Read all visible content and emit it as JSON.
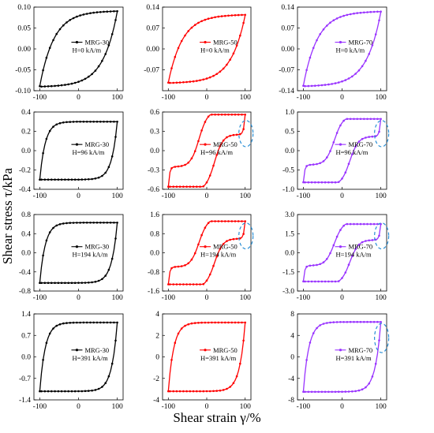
{
  "figure": {
    "ylabel": "Shear stress τ/kPa",
    "xlabel": "Shear strain γ/%"
  },
  "chart_data": [
    {
      "type": "line",
      "row": 0,
      "col": 0,
      "sample": "MRG-30",
      "field": "H=0 kA/m",
      "color": "#000000",
      "x_ticks": [
        -100,
        0,
        100
      ],
      "y_ticks": [
        0.1,
        0.05,
        0.0,
        -0.05,
        -0.1
      ],
      "y_tick_labels": [
        "0.10",
        "0.05",
        "0.00",
        "-0.05",
        "-0.10"
      ],
      "ylim": [
        -0.1,
        0.1
      ],
      "xlim": [
        -115,
        115
      ],
      "series": [
        {
          "name": "MRG-30",
          "tau_max": 0.091,
          "tau_plateau": 0.09,
          "shape": "elliptic",
          "loop": true
        }
      ],
      "annotation": null
    },
    {
      "type": "line",
      "row": 0,
      "col": 1,
      "sample": "MRG-50",
      "field": "H=0 kA/m",
      "color": "#ff0000",
      "x_ticks": [
        -100,
        0,
        100
      ],
      "y_ticks": [
        0.14,
        0.07,
        0.0,
        -0.07
      ],
      "y_tick_labels": [
        "0.14",
        "0.07",
        "0.00",
        "-0.07"
      ],
      "ylim": [
        -0.14,
        0.14
      ],
      "xlim": [
        -115,
        115
      ],
      "series": [
        {
          "name": "MRG-50",
          "tau_max": 0.115,
          "tau_plateau": 0.114,
          "shape": "elliptic",
          "loop": true
        }
      ],
      "annotation": null
    },
    {
      "type": "line",
      "row": 0,
      "col": 2,
      "sample": "MRG-70",
      "field": "H=0 kA/m",
      "color": "#9933ff",
      "x_ticks": [
        -100,
        0,
        100
      ],
      "y_ticks": [
        0.14,
        0.07,
        0.0,
        -0.07,
        -0.14
      ],
      "y_tick_labels": [
        "0.14",
        "0.07",
        "0.00",
        "-0.07",
        "-0.14"
      ],
      "ylim": [
        -0.14,
        0.14
      ],
      "xlim": [
        -115,
        115
      ],
      "series": [
        {
          "name": "MRG-70",
          "tau_max": 0.126,
          "tau_plateau": 0.125,
          "shape": "elliptic",
          "loop": true
        }
      ],
      "annotation": null
    },
    {
      "type": "line",
      "row": 1,
      "col": 0,
      "sample": "MRG-30",
      "field": "H=96 kA/m",
      "color": "#000000",
      "x_ticks": [
        -100,
        0,
        100
      ],
      "y_ticks": [
        0.4,
        0.2,
        0.0,
        -0.2,
        -0.4
      ],
      "y_tick_labels": [
        "0.4",
        "0.2",
        "0.0",
        "-0.2",
        "-0.4"
      ],
      "ylim": [
        -0.4,
        0.4
      ],
      "xlim": [
        -115,
        115
      ],
      "series": [
        {
          "name": "MRG-30",
          "tau_max": 0.3,
          "tau_plateau": 0.31,
          "shape": "plastic",
          "loop": true
        }
      ],
      "annotation": null
    },
    {
      "type": "line",
      "row": 1,
      "col": 1,
      "sample": "MRG-50",
      "field": "H=96 kA/m",
      "color": "#ff0000",
      "x_ticks": [
        -100,
        0,
        100
      ],
      "y_ticks": [
        0.6,
        0.3,
        0.0,
        -0.3,
        -0.6
      ],
      "y_tick_labels": [
        "0.6",
        "0.3",
        "0.0",
        "-0.3",
        "-0.6"
      ],
      "ylim": [
        -0.6,
        0.6
      ],
      "xlim": [
        -115,
        115
      ],
      "series": [
        {
          "name": "MRG-50",
          "tau_max": 0.56,
          "tau_plateau": 0.54,
          "shape": "sshape",
          "loop": true
        }
      ],
      "annotation": "dashed-ellipse"
    },
    {
      "type": "line",
      "row": 1,
      "col": 2,
      "sample": "MRG-70",
      "field": "H=96 kA/m",
      "color": "#9933ff",
      "x_ticks": [
        -100,
        0,
        100
      ],
      "y_ticks": [
        1.0,
        0.5,
        0.0,
        -0.5,
        -1.0
      ],
      "y_tick_labels": [
        "1.0",
        "0.5",
        "0.0",
        "-0.5",
        "-1.0"
      ],
      "ylim": [
        -1.0,
        1.0
      ],
      "xlim": [
        -115,
        115
      ],
      "series": [
        {
          "name": "MRG-70",
          "tau_max": 0.82,
          "tau_plateau": 0.8,
          "shape": "sshape",
          "loop": true
        }
      ],
      "annotation": "dashed-ellipse"
    },
    {
      "type": "line",
      "row": 2,
      "col": 0,
      "sample": "MRG-30",
      "field": "H=194 kA/m",
      "color": "#000000",
      "x_ticks": [
        -100,
        0,
        100
      ],
      "y_ticks": [
        0.8,
        0.4,
        0.0,
        -0.4,
        -0.8
      ],
      "y_tick_labels": [
        "0.8",
        "0.4",
        "0.0",
        "-0.4",
        "-0.8"
      ],
      "ylim": [
        -0.8,
        0.8
      ],
      "xlim": [
        -115,
        115
      ],
      "series": [
        {
          "name": "MRG-30",
          "tau_max": 0.63,
          "tau_plateau": 0.64,
          "shape": "plastic",
          "loop": true
        }
      ],
      "annotation": null
    },
    {
      "type": "line",
      "row": 2,
      "col": 1,
      "sample": "MRG-50",
      "field": "H=194 kA/m",
      "color": "#ff0000",
      "x_ticks": [
        -100,
        0,
        100
      ],
      "y_ticks": [
        1.6,
        0.8,
        0.0,
        -0.8,
        -1.6
      ],
      "y_tick_labels": [
        "1.6",
        "0.8",
        "0.0",
        "-0.8",
        "-1.6"
      ],
      "ylim": [
        -1.6,
        1.6
      ],
      "xlim": [
        -115,
        115
      ],
      "series": [
        {
          "name": "MRG-50",
          "tau_max": 1.32,
          "tau_plateau": 1.33,
          "shape": "sshape",
          "loop": true
        }
      ],
      "annotation": "dashed-ellipse"
    },
    {
      "type": "line",
      "row": 2,
      "col": 2,
      "sample": "MRG-70",
      "field": "H=194 kA/m",
      "color": "#9933ff",
      "x_ticks": [
        -100,
        0,
        100
      ],
      "y_ticks": [
        3.0,
        1.5,
        0.0,
        -1.5,
        -3.0
      ],
      "y_tick_labels": [
        "3.0",
        "1.5",
        "0.0",
        "-1.5",
        "-3.0"
      ],
      "ylim": [
        -3.0,
        3.0
      ],
      "xlim": [
        -115,
        115
      ],
      "series": [
        {
          "name": "MRG-70",
          "tau_max": 2.25,
          "tau_plateau": 2.3,
          "shape": "sshape",
          "loop": true
        }
      ],
      "annotation": "dashed-ellipse"
    },
    {
      "type": "line",
      "row": 3,
      "col": 0,
      "sample": "MRG-30",
      "field": "H=391 kA/m",
      "color": "#000000",
      "x_ticks": [
        -100,
        0,
        100
      ],
      "y_ticks": [
        1.4,
        0.7,
        0.0,
        -0.7,
        -1.4
      ],
      "y_tick_labels": [
        "1.4",
        "0.7",
        "0.0",
        "-0.7",
        "-1.4"
      ],
      "ylim": [
        -1.4,
        1.4
      ],
      "xlim": [
        -115,
        115
      ],
      "series": [
        {
          "name": "MRG-30",
          "tau_max": 1.12,
          "tau_plateau": 1.12,
          "shape": "plastic",
          "loop": true
        }
      ],
      "annotation": null
    },
    {
      "type": "line",
      "row": 3,
      "col": 1,
      "sample": "MRG-50",
      "field": "H=391 kA/m",
      "color": "#ff0000",
      "x_ticks": [
        -100,
        0,
        100
      ],
      "y_ticks": [
        4,
        2,
        0,
        -2,
        -4
      ],
      "y_tick_labels": [
        "4",
        "2",
        "0",
        "-2",
        "-4"
      ],
      "ylim": [
        -4,
        4
      ],
      "xlim": [
        -115,
        115
      ],
      "series": [
        {
          "name": "MRG-50",
          "tau_max": 3.2,
          "tau_plateau": 3.15,
          "shape": "plastic",
          "loop": true
        }
      ],
      "annotation": null
    },
    {
      "type": "line",
      "row": 3,
      "col": 2,
      "sample": "MRG-70",
      "field": "H=391 kA/m",
      "color": "#9933ff",
      "x_ticks": [
        -100,
        0,
        100
      ],
      "y_ticks": [
        8,
        4,
        0,
        -4,
        -8
      ],
      "y_tick_labels": [
        "8",
        "4",
        "0",
        "-4",
        "-8"
      ],
      "ylim": [
        -8,
        8
      ],
      "xlim": [
        -115,
        115
      ],
      "series": [
        {
          "name": "MRG-70",
          "tau_max": 6.5,
          "tau_plateau": 6.4,
          "shape": "plastic",
          "loop": true
        }
      ],
      "annotation": "dashed-ellipse"
    }
  ]
}
